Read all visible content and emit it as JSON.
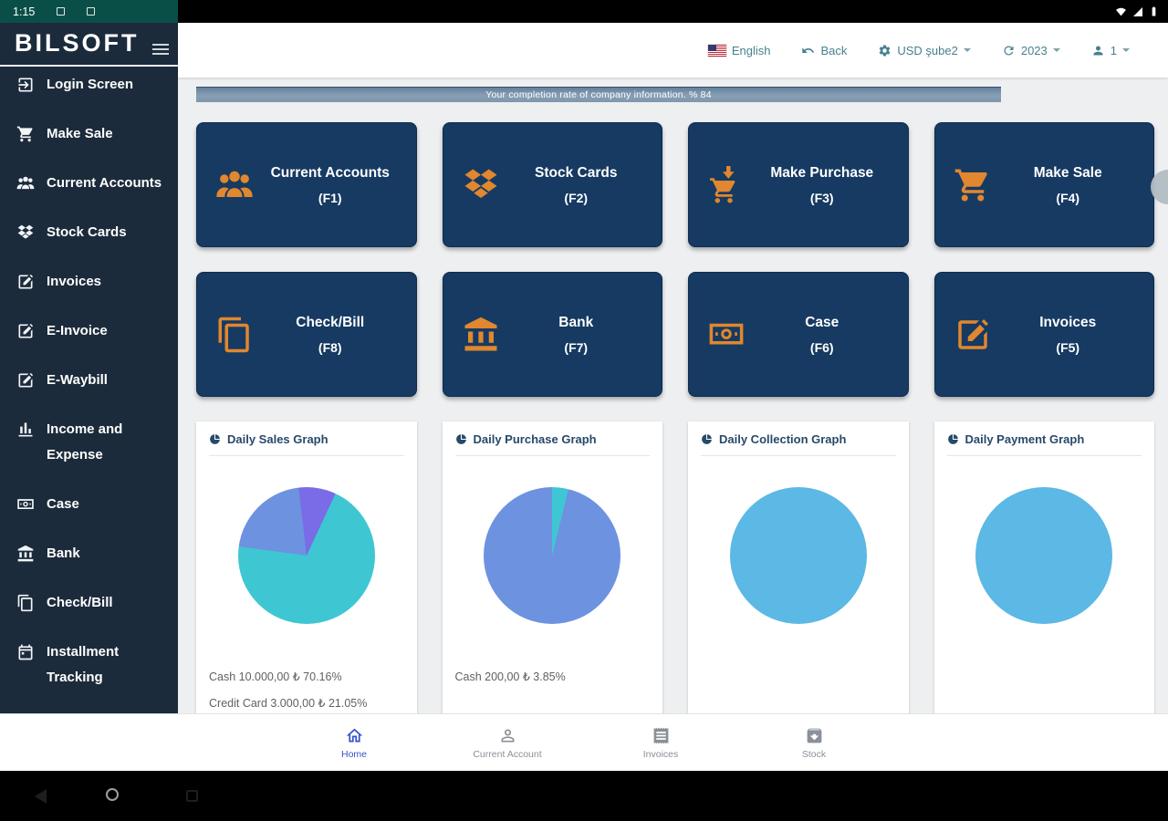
{
  "colors": {
    "sidebar_bg": "#1c2b3b",
    "tile_bg": "#163a62",
    "accent_orange": "#e0872f",
    "completion_bar": "#7f97ad",
    "active_nav_blue": "#3753c8",
    "pie_teal": "#3fc6d3",
    "pie_blue": "#6d92e0",
    "pie_purple": "#7a6be6",
    "pie_lightblue": "#5cb8e4"
  },
  "status_bar": {
    "time": "1:15"
  },
  "sidebar": {
    "logo": "BILSOFT",
    "items": [
      {
        "label": "Login Screen",
        "icon": "login-icon"
      },
      {
        "label": "Make Sale",
        "icon": "cart-icon"
      },
      {
        "label": "Current Accounts",
        "icon": "people-icon"
      },
      {
        "label": "Stock Cards",
        "icon": "stock-diamonds-icon"
      },
      {
        "label": "Invoices",
        "icon": "edit-square-icon"
      },
      {
        "label": "E-Invoice",
        "icon": "edit-square-icon"
      },
      {
        "label": "E-Waybill",
        "icon": "edit-square-icon"
      },
      {
        "label": "Income and Expense",
        "icon": "bar-chart-icon"
      },
      {
        "label": "Case",
        "icon": "money-icon"
      },
      {
        "label": "Bank",
        "icon": "bank-icon"
      },
      {
        "label": "Check/Bill",
        "icon": "pages-icon"
      },
      {
        "label": "Installment Tracking",
        "icon": "calendar-icon"
      }
    ]
  },
  "header": {
    "language": "English",
    "back": "Back",
    "branch": "USD şube2",
    "year": "2023",
    "user": "1"
  },
  "completion_bar": {
    "text": "Your completion rate of company information. % 84",
    "percent": 84
  },
  "tiles": [
    {
      "title": "Current Accounts",
      "fkey": "(F1)",
      "icon": "people-icon"
    },
    {
      "title": "Stock Cards",
      "fkey": "(F2)",
      "icon": "stock-diamonds-icon"
    },
    {
      "title": "Make Purchase",
      "fkey": "(F3)",
      "icon": "cart-down-icon"
    },
    {
      "title": "Make Sale",
      "fkey": "(F4)",
      "icon": "cart-icon"
    },
    {
      "title": "Check/Bill",
      "fkey": "(F8)",
      "icon": "pages-icon"
    },
    {
      "title": "Bank",
      "fkey": "(F7)",
      "icon": "bank-icon"
    },
    {
      "title": "Case",
      "fkey": "(F6)",
      "icon": "money-icon"
    },
    {
      "title": "Invoices",
      "fkey": "(F5)",
      "icon": "edit-square-icon"
    }
  ],
  "chart_data": [
    {
      "type": "pie",
      "title": "Daily Sales Graph",
      "start_angle": 25,
      "slices": [
        {
          "label": "Cash",
          "amount": "10.000,00 ₺",
          "percent": 70.16,
          "color": "#3fc6d3"
        },
        {
          "label": "Credit Card",
          "amount": "3.000,00 ₺",
          "percent": 21.05,
          "color": "#6d92e0"
        },
        {
          "label": "",
          "amount": "",
          "percent": 8.79,
          "color": "#7a6be6"
        }
      ],
      "legend": [
        "Cash 10.000,00 ₺ 70.16%",
        "Credit Card 3.000,00 ₺ 21.05%"
      ]
    },
    {
      "type": "pie",
      "title": "Daily Purchase Graph",
      "start_angle": 0,
      "slices": [
        {
          "label": "Cash",
          "amount": "200,00 ₺",
          "percent": 3.85,
          "color": "#3fc6d3"
        },
        {
          "label": "",
          "amount": "",
          "percent": 96.15,
          "color": "#6d92e0"
        }
      ],
      "legend": [
        "Cash 200,00 ₺ 3.85%"
      ]
    },
    {
      "type": "pie",
      "title": "Daily Collection Graph",
      "start_angle": 0,
      "slices": [
        {
          "label": "",
          "amount": "",
          "percent": 100,
          "color": "#5cb8e4"
        }
      ],
      "legend": []
    },
    {
      "type": "pie",
      "title": "Daily Payment Graph",
      "start_angle": 0,
      "slices": [
        {
          "label": "",
          "amount": "",
          "percent": 100,
          "color": "#5cb8e4"
        }
      ],
      "legend": []
    }
  ],
  "bottom_nav": {
    "items": [
      {
        "label": "Home",
        "icon": "home-icon",
        "active": true
      },
      {
        "label": "Current Account",
        "icon": "person-outline-icon",
        "active": false
      },
      {
        "label": "Invoices",
        "icon": "receipt-icon",
        "active": false
      },
      {
        "label": "Stock",
        "icon": "stock-box-icon",
        "active": false
      }
    ]
  }
}
